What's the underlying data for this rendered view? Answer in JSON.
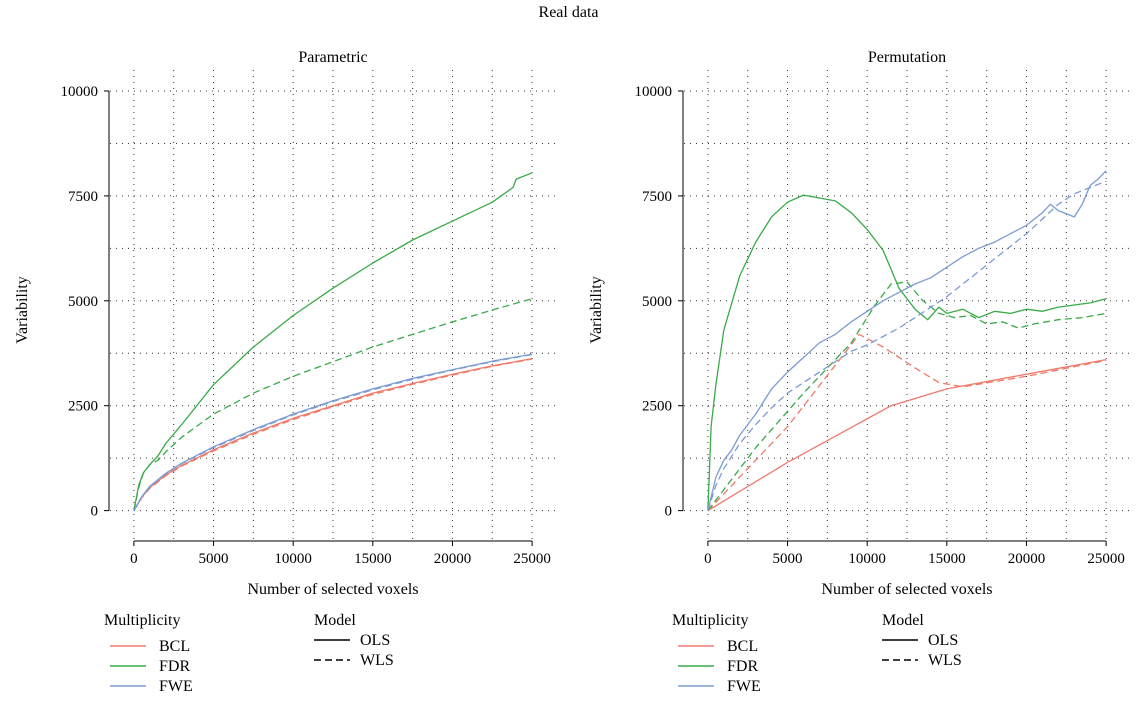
{
  "figure": {
    "suptitle": "Real data"
  },
  "legend": {
    "multiplicity_title": "Multiplicity",
    "model_title": "Model",
    "multiplicity_items": [
      {
        "label": "BCL",
        "color": "#f0796a"
      },
      {
        "label": "FDR",
        "color": "#3aaa48"
      },
      {
        "label": "FWE",
        "color": "#7b9bd4"
      }
    ],
    "model_items": [
      {
        "label": "OLS",
        "dash": "solid"
      },
      {
        "label": "WLS",
        "dash": "dashed"
      }
    ]
  },
  "chart_data": [
    {
      "type": "line",
      "title": "Parametric",
      "xlabel": "Number of selected voxels",
      "ylabel": "Variability",
      "xlim": [
        -1500,
        26500
      ],
      "ylim": [
        -700,
        10500
      ],
      "xticks": [
        0,
        5000,
        10000,
        15000,
        20000,
        25000
      ],
      "yticks": [
        0,
        2500,
        5000,
        7500,
        10000
      ],
      "grid": true,
      "series": [
        {
          "name": "BCL",
          "model": "OLS",
          "color": "#f0796a",
          "dash": "solid",
          "x": [
            0,
            500,
            1000,
            2000,
            3000,
            5000,
            7500,
            10000,
            12500,
            15000,
            17500,
            20000,
            22500,
            25000
          ],
          "y": [
            0,
            320,
            550,
            850,
            1080,
            1450,
            1850,
            2200,
            2500,
            2800,
            3030,
            3250,
            3450,
            3620
          ]
        },
        {
          "name": "BCL",
          "model": "WLS",
          "color": "#f0796a",
          "dash": "dashed",
          "x": [
            0,
            500,
            1000,
            2000,
            3000,
            5000,
            7500,
            10000,
            12500,
            15000,
            17500,
            20000,
            22500,
            25000
          ],
          "y": [
            0,
            310,
            530,
            830,
            1060,
            1420,
            1820,
            2170,
            2480,
            2770,
            3010,
            3230,
            3440,
            3610
          ]
        },
        {
          "name": "FDR",
          "model": "OLS",
          "color": "#3aaa48",
          "dash": "solid",
          "x": [
            0,
            300,
            600,
            1000,
            1500,
            2000,
            3000,
            5000,
            7500,
            10000,
            12500,
            15000,
            17500,
            20000,
            22500,
            23800,
            24000,
            25000
          ],
          "y": [
            0,
            600,
            900,
            1100,
            1300,
            1600,
            2050,
            3000,
            3900,
            4650,
            5300,
            5900,
            6450,
            6900,
            7350,
            7700,
            7900,
            8050
          ]
        },
        {
          "name": "FDR",
          "model": "WLS",
          "color": "#3aaa48",
          "dash": "dashed",
          "x": [
            0,
            300,
            600,
            1000,
            1500,
            2000,
            3000,
            5000,
            7500,
            10000,
            12500,
            15000,
            17500,
            20000,
            22500,
            25000
          ],
          "y": [
            0,
            550,
            900,
            1100,
            1200,
            1400,
            1750,
            2300,
            2800,
            3200,
            3550,
            3900,
            4200,
            4500,
            4780,
            5050
          ]
        },
        {
          "name": "FWE",
          "model": "OLS",
          "color": "#7b9bd4",
          "dash": "solid",
          "x": [
            0,
            500,
            1000,
            2000,
            3000,
            5000,
            7500,
            10000,
            12500,
            15000,
            17500,
            20000,
            22500,
            25000
          ],
          "y": [
            0,
            340,
            580,
            890,
            1130,
            1520,
            1930,
            2300,
            2620,
            2900,
            3150,
            3360,
            3560,
            3730
          ]
        },
        {
          "name": "FWE",
          "model": "WLS",
          "color": "#7b9bd4",
          "dash": "dashed",
          "x": [
            0,
            500,
            1000,
            2000,
            3000,
            5000,
            7500,
            10000,
            12500,
            15000,
            17500,
            20000,
            22500,
            25000
          ],
          "y": [
            0,
            330,
            570,
            880,
            1120,
            1500,
            1910,
            2280,
            2600,
            2880,
            3130,
            3350,
            3550,
            3720
          ]
        }
      ]
    },
    {
      "type": "line",
      "title": "Permutation",
      "xlabel": "Number of selected voxels",
      "ylabel": "Variability",
      "xlim": [
        -1500,
        26500
      ],
      "ylim": [
        -700,
        10500
      ],
      "xticks": [
        0,
        5000,
        10000,
        15000,
        20000,
        25000
      ],
      "yticks": [
        0,
        2500,
        5000,
        7500,
        10000
      ],
      "grid": true,
      "series": [
        {
          "name": "BCL",
          "model": "OLS",
          "color": "#f0796a",
          "dash": "solid",
          "x": [
            0,
            5000,
            11500,
            15000,
            20000,
            25000
          ],
          "y": [
            0,
            1150,
            2500,
            2900,
            3250,
            3600
          ]
        },
        {
          "name": "BCL",
          "model": "WLS",
          "color": "#f0796a",
          "dash": "dashed",
          "x": [
            0,
            5000,
            9500,
            11000,
            13000,
            14500,
            16000,
            20000,
            25000
          ],
          "y": [
            0,
            2000,
            4200,
            3900,
            3400,
            3050,
            2950,
            3200,
            3580
          ]
        },
        {
          "name": "FDR",
          "model": "OLS",
          "color": "#3aaa48",
          "dash": "solid",
          "x": [
            0,
            200,
            500,
            1000,
            2000,
            3000,
            4000,
            5000,
            6000,
            7000,
            8000,
            9000,
            10000,
            11000,
            12000,
            13000,
            13800,
            14500,
            15000,
            16000,
            17000,
            18000,
            19000,
            20000,
            21000,
            22000,
            23000,
            24000,
            25000
          ],
          "y": [
            0,
            2000,
            3000,
            4300,
            5600,
            6400,
            7000,
            7350,
            7520,
            7450,
            7380,
            7100,
            6700,
            6200,
            5300,
            4800,
            4550,
            4850,
            4700,
            4800,
            4600,
            4750,
            4700,
            4800,
            4750,
            4850,
            4900,
            4950,
            5050
          ]
        },
        {
          "name": "FDR",
          "model": "WLS",
          "color": "#3aaa48",
          "dash": "dashed",
          "x": [
            0,
            3000,
            6000,
            9000,
            10500,
            11500,
            12500,
            13500,
            14500,
            15500,
            16500,
            17500,
            18500,
            19500,
            20500,
            22000,
            23500,
            25000
          ],
          "y": [
            0,
            1500,
            2800,
            4000,
            4900,
            5400,
            5450,
            5000,
            4700,
            4600,
            4650,
            4450,
            4500,
            4350,
            4450,
            4550,
            4600,
            4700
          ]
        },
        {
          "name": "FWE",
          "model": "OLS",
          "color": "#7b9bd4",
          "dash": "solid",
          "x": [
            0,
            500,
            1000,
            1500,
            2000,
            3000,
            4000,
            5000,
            6000,
            7000,
            8000,
            9000,
            10000,
            11000,
            12000,
            13000,
            14000,
            15000,
            16000,
            17000,
            18000,
            19000,
            20000,
            21000,
            21500,
            22000,
            23000,
            23500,
            24000,
            24500,
            25000
          ],
          "y": [
            0,
            800,
            1200,
            1450,
            1800,
            2300,
            2900,
            3300,
            3650,
            4000,
            4200,
            4500,
            4750,
            5000,
            5200,
            5400,
            5550,
            5800,
            6050,
            6250,
            6400,
            6600,
            6800,
            7100,
            7300,
            7150,
            7000,
            7300,
            7750,
            7900,
            8100
          ]
        },
        {
          "name": "FWE",
          "model": "WLS",
          "color": "#7b9bd4",
          "dash": "dashed",
          "x": [
            0,
            500,
            1000,
            2000,
            3000,
            4000,
            5000,
            6000,
            7000,
            8000,
            9000,
            10000,
            11000,
            12000,
            13000,
            14000,
            15000,
            16000,
            17000,
            18000,
            19000,
            20000,
            21000,
            22000,
            23000,
            24000,
            25000
          ],
          "y": [
            0,
            600,
            1000,
            1600,
            2050,
            2450,
            2800,
            3050,
            3300,
            3550,
            3800,
            3950,
            4150,
            4350,
            4600,
            4850,
            5100,
            5400,
            5700,
            6000,
            6300,
            6600,
            6950,
            7300,
            7550,
            7700,
            7850
          ]
        }
      ]
    }
  ]
}
